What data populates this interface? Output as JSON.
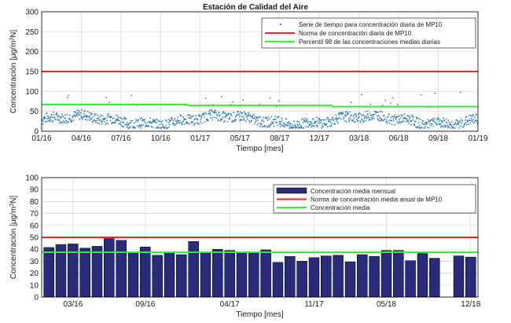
{
  "colors": {
    "scatter": "#2f7fbf",
    "norma": "#ff2020",
    "percentil": "#33ee33",
    "bar": "#2a2a7a",
    "grid": "#d4d4d4",
    "axis": "#000000"
  },
  "chart_data": [
    {
      "type": "scatter",
      "title": "Estación de Calidad del Aire",
      "xlabel": "Tiempo [mes]",
      "ylabel": "Concentración [μg/m³N]",
      "ylim": [
        0,
        300
      ],
      "xlim": [
        "2016-01-01",
        "2019-01-01"
      ],
      "yticks": [
        0,
        50,
        100,
        150,
        200,
        250,
        300
      ],
      "xtick_labels": [
        "01/16",
        "04/16",
        "07/16",
        "10/16",
        "01/17",
        "05/17",
        "08/17",
        "12/17",
        "03/18",
        "06/18",
        "09/18",
        "01/19"
      ],
      "grid": true,
      "legend_position": "top-right",
      "legend": [
        "Serie de tiempo para concentración diaria de MP10",
        "Norma de concentración diaria de MP10",
        "Percentil 98 de las concentraciones medias diarias"
      ],
      "norma_diaria": 150,
      "percentil_98": [
        {
          "from": "2016-01-01",
          "to": "2016-12-31",
          "value": 67
        },
        {
          "from": "2017-01-01",
          "to": "2017-12-31",
          "value": 65
        },
        {
          "from": "2018-01-01",
          "to": "2018-12-31",
          "value": 62
        }
      ],
      "daily_series_summary": {
        "typical_min": 20,
        "typical_max": 60,
        "outliers_max": 100
      }
    },
    {
      "type": "bar",
      "xlabel": "Tiempo [mes]",
      "ylabel": "Concentración [μg/m³N]",
      "ylim": [
        0,
        100
      ],
      "yticks": [
        0,
        10,
        20,
        30,
        40,
        50,
        60,
        70,
        80,
        90,
        100
      ],
      "xtick_labels": [
        "03/16",
        "09/16",
        "04/17",
        "11/17",
        "05/18",
        "12/18"
      ],
      "grid": true,
      "legend_position": "top-right",
      "legend": [
        "Concentración media mensual",
        "Norma de concentración media anual de MP10",
        "Concentración media"
      ],
      "categories": [
        "01/16",
        "02/16",
        "03/16",
        "04/16",
        "05/16",
        "06/16",
        "07/16",
        "08/16",
        "09/16",
        "10/16",
        "11/16",
        "12/16",
        "01/17",
        "02/17",
        "03/17",
        "04/17",
        "05/17",
        "06/17",
        "07/17",
        "08/17",
        "09/17",
        "10/17",
        "11/17",
        "12/17",
        "01/18",
        "02/18",
        "03/18",
        "04/18",
        "05/18",
        "06/18",
        "07/18",
        "08/18",
        "09/18",
        "10/18",
        "11/18",
        "12/18"
      ],
      "values": [
        41.5,
        44,
        44.5,
        41,
        42.5,
        49,
        47.5,
        38,
        42,
        35,
        37.5,
        35.5,
        46.5,
        38,
        40,
        39,
        38,
        38,
        39.5,
        29,
        34,
        30,
        33,
        34.5,
        35,
        29.5,
        35.5,
        34,
        39,
        39,
        30.5,
        36.5,
        32.5,
        0,
        34.5,
        33.5
      ],
      "norma_anual": 50,
      "concentracion_media": 37.5
    }
  ]
}
